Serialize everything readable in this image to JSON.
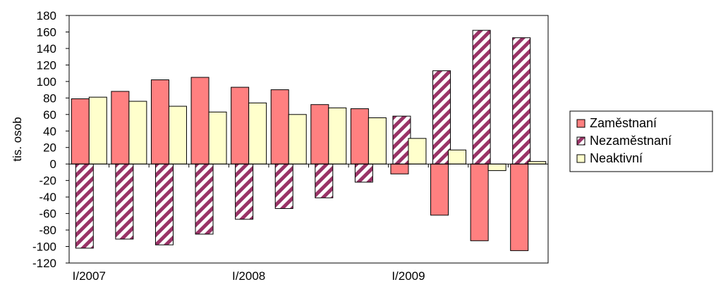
{
  "chart_data": {
    "type": "bar",
    "title": "",
    "xlabel": "",
    "ylabel": "tis. osob",
    "ylim": [
      -120,
      180
    ],
    "ytick_step": 20,
    "grid": false,
    "legend_position": "right",
    "categories": [
      "I/2007",
      "II/2007",
      "III/2007",
      "IV/2007",
      "I/2008",
      "II/2008",
      "III/2008",
      "IV/2008",
      "I/2009",
      "II/2009",
      "III/2009",
      "IV/2009"
    ],
    "x_tick_labels": [
      "I/2007",
      "",
      "",
      "",
      "I/2008",
      "",
      "",
      "",
      "I/2009",
      "",
      "",
      ""
    ],
    "series": [
      {
        "name": "Zaměstnaní",
        "values": [
          79,
          88,
          102,
          105,
          93,
          90,
          72,
          67,
          -12,
          -62,
          -93,
          -105
        ],
        "color": "#ff8080",
        "pattern": "solid"
      },
      {
        "name": "Nezaměstnaní",
        "values": [
          -102,
          -91,
          -98,
          -85,
          -67,
          -54,
          -41,
          -22,
          58,
          113,
          162,
          153
        ],
        "color": "#993366",
        "pattern": "diagonal-stripes"
      },
      {
        "name": "Neaktivní",
        "values": [
          81,
          76,
          70,
          63,
          74,
          60,
          68,
          56,
          31,
          17,
          -8,
          3
        ],
        "color": "#ffffcc",
        "pattern": "solid"
      }
    ]
  }
}
